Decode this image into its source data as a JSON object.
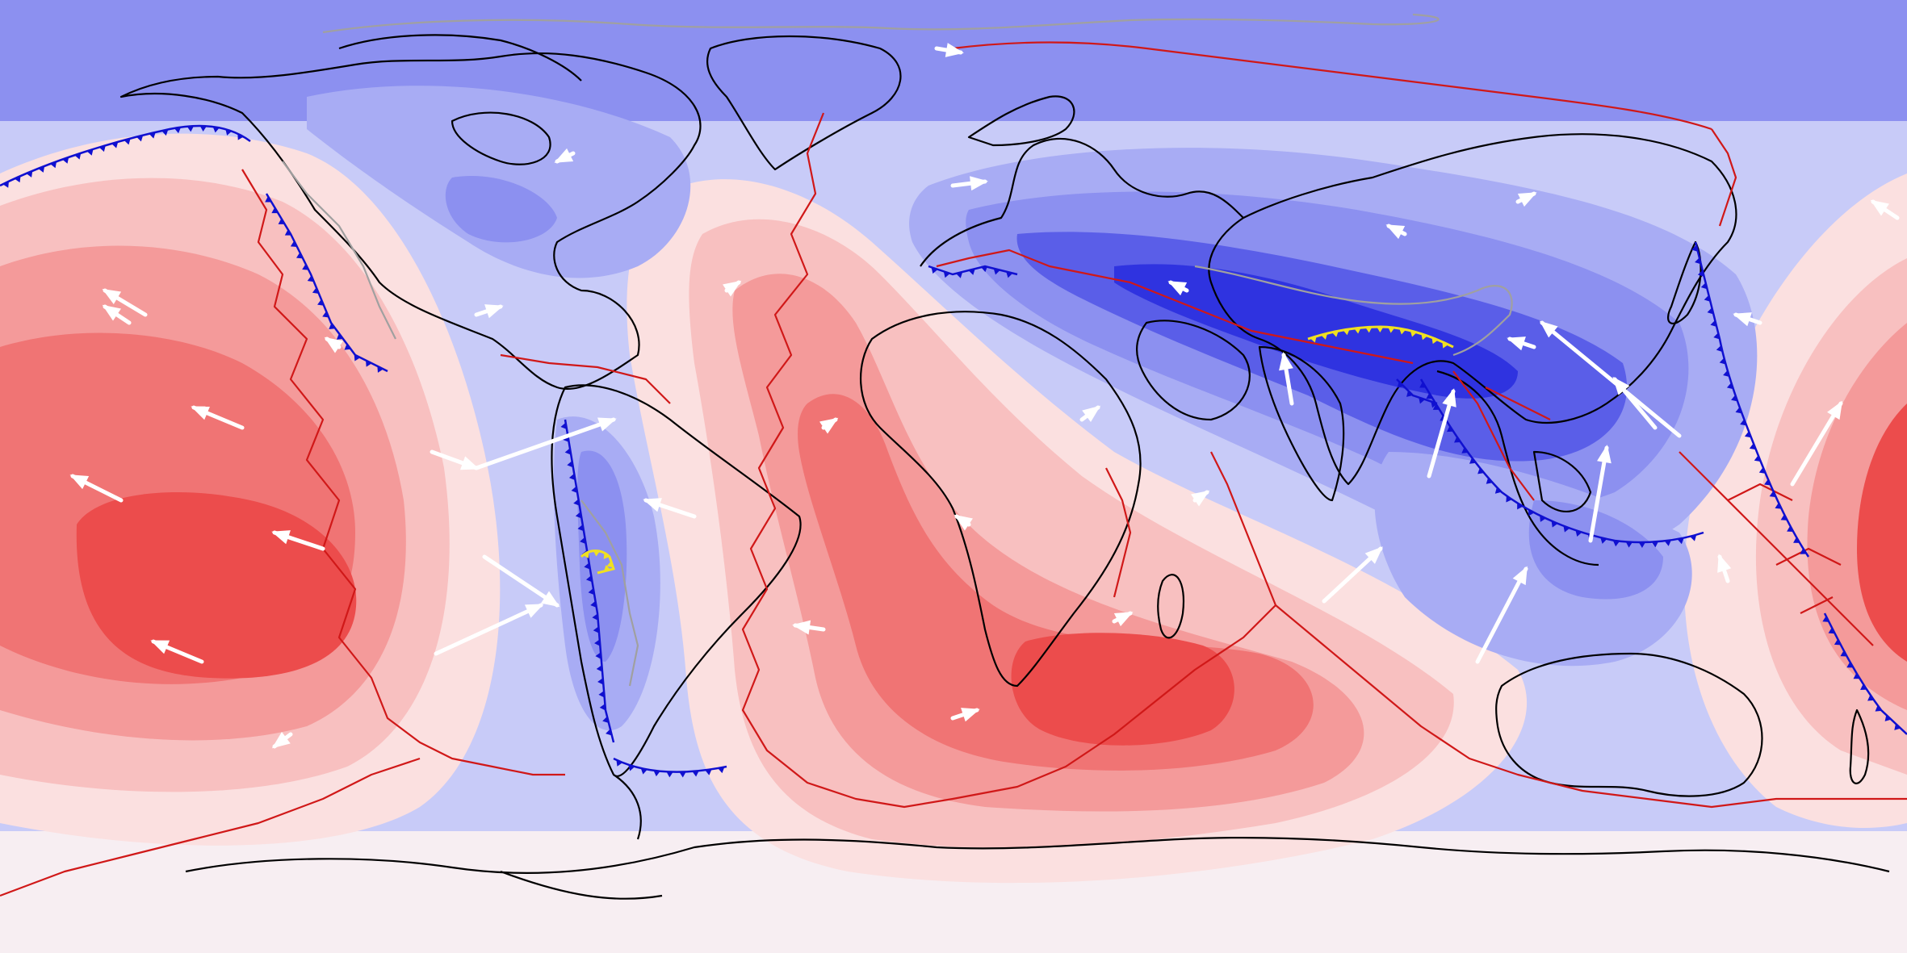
{
  "map": {
    "projection": "equirectangular",
    "extent": {
      "lon": [
        -180,
        180
      ],
      "lat": [
        -90,
        90
      ]
    },
    "field_colors": {
      "blue_scale": [
        "#8c90f0",
        "#a8acf4",
        "#c4c6f8",
        "#dfe0fb",
        "#5a5ee8",
        "#2f33e0"
      ],
      "red_scale": [
        "#fbe0e0",
        "#f8c0c0",
        "#f49a9a",
        "#f07474",
        "#ec4c4c"
      ],
      "neutral": "#f3f1f6"
    },
    "line_colors": {
      "coastlines": "#000000",
      "plate_boundaries": "#d01818",
      "subduction_zones": "#1010d0",
      "orogen_outlines": "#a0a0a0",
      "collision_zone": "#f0e020",
      "velocity_arrows": "#ffffff"
    },
    "layers": [
      "field-contours",
      "coastlines",
      "plate-boundaries",
      "subduction-zones",
      "orogen-outlines",
      "collision-zones",
      "velocity-arrows"
    ],
    "arrow_count": 40
  }
}
